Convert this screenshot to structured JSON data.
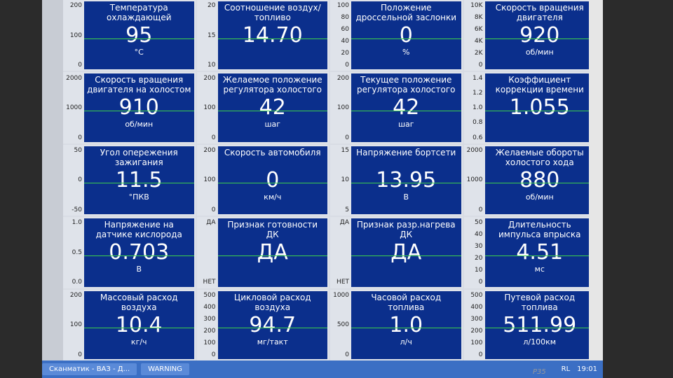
{
  "panels": [
    {
      "title": "Температура охлаждающей жидкости",
      "value": "95",
      "unit": "°C",
      "ticks": [
        "200",
        "100",
        "0"
      ]
    },
    {
      "title": "Соотношение воздух/топливо",
      "value": "14.70",
      "ticks": [
        "20",
        "15",
        "10"
      ]
    },
    {
      "title": "Положение дроссельной заслонки",
      "value": "0",
      "unit": "%",
      "ticks": [
        "100",
        "80",
        "60",
        "40",
        "20",
        "0"
      ]
    },
    {
      "title": "Скорость вращения двигателя",
      "value": "920",
      "unit": "об/мин",
      "ticks": [
        "10K",
        "8K",
        "6K",
        "4K",
        "2K",
        "0"
      ]
    },
    {
      "title": "Скорость вращения двигателя на холостом ...",
      "value": "910",
      "unit": "об/мин",
      "ticks": [
        "2000",
        "1000",
        "0"
      ]
    },
    {
      "title": "Желаемое положение регулятора холостого х...",
      "value": "42",
      "unit": "шаг",
      "ticks": [
        "200",
        "100",
        "0"
      ]
    },
    {
      "title": "Текущее положение регулятора холостого х...",
      "value": "42",
      "unit": "шаг",
      "ticks": [
        "200",
        "100",
        "0"
      ]
    },
    {
      "title": "Коэффициент коррекции времени впрыска",
      "value": "1.055",
      "ticks": [
        "1.4",
        "1.2",
        "1.0",
        "0.8",
        "0.6"
      ]
    },
    {
      "title": "Угол опережения зажигания",
      "value": "11.5",
      "unit": "°ПКВ",
      "ticks": [
        "50",
        "0",
        "-50"
      ]
    },
    {
      "title": "Скорость автомобиля",
      "value": "0",
      "unit": "км/ч",
      "ticks": [
        "200",
        "100",
        "0"
      ]
    },
    {
      "title": "Напряжение бортсети",
      "value": "13.95",
      "unit": "В",
      "ticks": [
        "15",
        "10",
        "5"
      ]
    },
    {
      "title": "Желаемые обороты холостого хода",
      "value": "880",
      "unit": "об/мин",
      "ticks": [
        "2000",
        "1000",
        "0"
      ]
    },
    {
      "title": "Напряжение на датчике кислорода",
      "value": "0.703",
      "unit": "В",
      "ticks": [
        "1.0",
        "0.5",
        "0.0"
      ]
    },
    {
      "title": "Признак готовности ДК",
      "value": "ДА",
      "ticks": [
        "ДА",
        "НЕТ"
      ]
    },
    {
      "title": "Признак разр.нагрева ДК",
      "value": "ДА",
      "ticks": [
        "ДА",
        "НЕТ"
      ]
    },
    {
      "title": "Длительность импульса впрыска",
      "value": "4.51",
      "unit": "мс",
      "ticks": [
        "50",
        "40",
        "30",
        "20",
        "10",
        "0"
      ]
    },
    {
      "title": "Массовый расход воздуха",
      "value": "10.4",
      "unit": "кг/ч",
      "ticks": [
        "200",
        "100",
        "0"
      ]
    },
    {
      "title": "Цикловой расход воздуха",
      "value": "94.7",
      "unit": "мг/такт",
      "ticks": [
        "500",
        "400",
        "300",
        "200",
        "100",
        "0"
      ]
    },
    {
      "title": "Часовой расход топлива",
      "value": "1.0",
      "unit": "л/ч",
      "ticks": [
        "1000",
        "500",
        "0"
      ]
    },
    {
      "title": "Путевой расход топлива",
      "value": "511.99",
      "unit": "л/100км",
      "ticks": [
        "500",
        "400",
        "300",
        "200",
        "100",
        "0"
      ]
    }
  ],
  "taskbar": {
    "items": [
      "Сканматик - ВАЗ - Д...",
      "WARNING"
    ],
    "tray": [
      "RL",
      "19:01"
    ]
  },
  "monitor": {
    "model": "P35"
  }
}
